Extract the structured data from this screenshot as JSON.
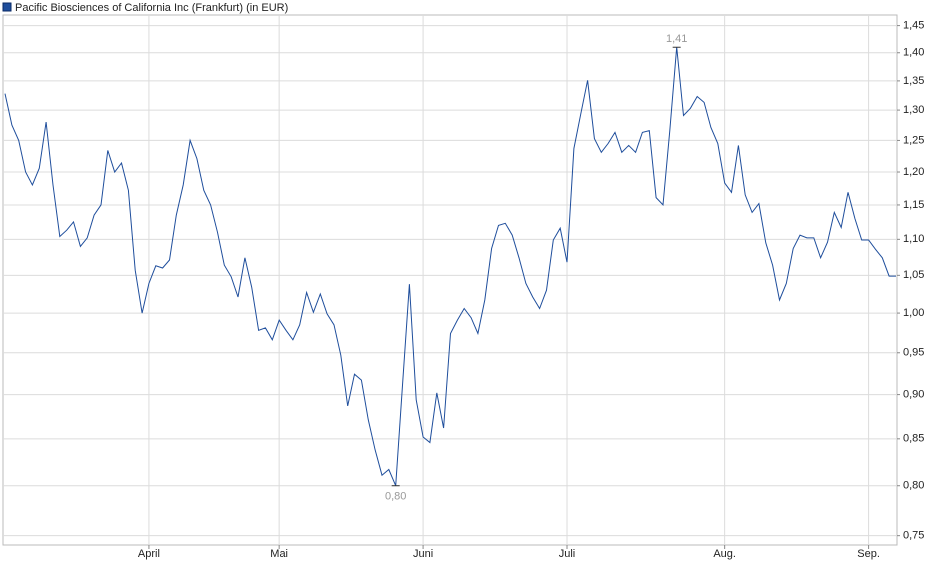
{
  "chart_data": {
    "type": "line",
    "series": [
      {
        "name": "Pacific Biosciences of California Inc (Frankfurt) (in EUR)",
        "color": "#1f4e9c",
        "values": [
          1.328,
          1.275,
          1.25,
          1.2,
          1.18,
          1.206,
          1.28,
          1.18,
          1.104,
          1.113,
          1.125,
          1.09,
          1.102,
          1.135,
          1.15,
          1.234,
          1.2,
          1.214,
          1.172,
          1.057,
          1.0,
          1.039,
          1.063,
          1.06,
          1.071,
          1.135,
          1.18,
          1.25,
          1.221,
          1.172,
          1.15,
          1.11,
          1.064,
          1.048,
          1.021,
          1.074,
          1.034,
          0.978,
          0.981,
          0.966,
          0.991,
          0.978,
          0.966,
          0.985,
          1.027,
          1.001,
          1.025,
          0.999,
          0.985,
          0.947,
          0.887,
          0.924,
          0.917,
          0.871,
          0.838,
          0.811,
          0.817,
          0.8,
          0.911,
          1.038,
          0.894,
          0.852,
          0.846,
          0.902,
          0.862,
          0.974,
          0.991,
          1.006,
          0.994,
          0.974,
          1.017,
          1.087,
          1.12,
          1.123,
          1.106,
          1.074,
          1.039,
          1.021,
          1.006,
          1.03,
          1.099,
          1.116,
          1.068,
          1.237,
          1.293,
          1.351,
          1.253,
          1.231,
          1.245,
          1.263,
          1.231,
          1.242,
          1.231,
          1.263,
          1.266,
          1.161,
          1.15,
          1.266,
          1.41,
          1.291,
          1.303,
          1.323,
          1.313,
          1.271,
          1.245,
          1.183,
          1.169,
          1.242,
          1.165,
          1.139,
          1.152,
          1.095,
          1.064,
          1.017,
          1.039,
          1.087,
          1.106,
          1.102,
          1.102,
          1.074,
          1.096,
          1.139,
          1.117,
          1.169,
          1.13,
          1.099,
          1.099,
          1.086,
          1.074,
          1.049,
          1.049
        ]
      }
    ],
    "xlim": [
      0,
      130
    ],
    "xticks": [
      {
        "value": 21,
        "label": "April"
      },
      {
        "value": 40,
        "label": "Mai"
      },
      {
        "value": 61,
        "label": "Juni"
      },
      {
        "value": 82,
        "label": "Juli"
      },
      {
        "value": 105,
        "label": "Aug."
      },
      {
        "value": 126,
        "label": "Sep."
      }
    ],
    "ylim": [
      0.741,
      1.47
    ],
    "log_y": true,
    "yticks": [
      {
        "value": 0.75,
        "label": "0,75"
      },
      {
        "value": 0.8,
        "label": "0,80"
      },
      {
        "value": 0.85,
        "label": "0,85"
      },
      {
        "value": 0.9,
        "label": "0,90"
      },
      {
        "value": 0.95,
        "label": "0,95"
      },
      {
        "value": 1.0,
        "label": "1,00"
      },
      {
        "value": 1.05,
        "label": "1,05"
      },
      {
        "value": 1.1,
        "label": "1,10"
      },
      {
        "value": 1.15,
        "label": "1,15"
      },
      {
        "value": 1.2,
        "label": "1,20"
      },
      {
        "value": 1.25,
        "label": "1,25"
      },
      {
        "value": 1.3,
        "label": "1,30"
      },
      {
        "value": 1.35,
        "label": "1,35"
      },
      {
        "value": 1.4,
        "label": "1,40"
      },
      {
        "value": 1.45,
        "label": "1,45"
      }
    ],
    "grid": true,
    "annotations": [
      {
        "x": 98,
        "label": "1,41"
      },
      {
        "x": 57,
        "label": "0,80"
      }
    ]
  }
}
